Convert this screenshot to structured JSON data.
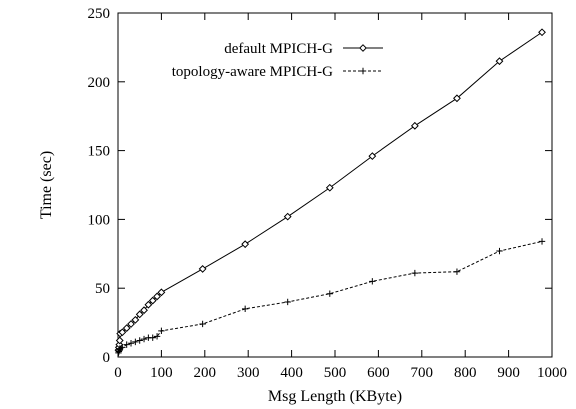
{
  "chart_data": {
    "type": "line",
    "title": "",
    "xlabel": "Msg Length (KByte)",
    "ylabel": "Time (sec)",
    "xlim": [
      0,
      1000
    ],
    "ylim": [
      0,
      250
    ],
    "x_ticks": [
      "0",
      "100",
      "200",
      "300",
      "400",
      "500",
      "600",
      "700",
      "800",
      "900",
      "1000"
    ],
    "y_ticks": [
      "0",
      "50",
      "100",
      "150",
      "200",
      "250"
    ],
    "grid": false,
    "legend_position": "top-right",
    "series": [
      {
        "name": "default MPICH-G",
        "line_style": "solid",
        "marker": "diamond",
        "color": "#000000",
        "points": [
          [
            1,
            5
          ],
          [
            2,
            7
          ],
          [
            3,
            9
          ],
          [
            4,
            12
          ],
          [
            5,
            17
          ],
          [
            10,
            18
          ],
          [
            20,
            21
          ],
          [
            30,
            24
          ],
          [
            40,
            27
          ],
          [
            50,
            31
          ],
          [
            60,
            34
          ],
          [
            70,
            38
          ],
          [
            80,
            41
          ],
          [
            90,
            44
          ],
          [
            100,
            47
          ],
          [
            195,
            64
          ],
          [
            293,
            82
          ],
          [
            391,
            102
          ],
          [
            488,
            123
          ],
          [
            586,
            146
          ],
          [
            684,
            168
          ],
          [
            781,
            188
          ],
          [
            879,
            215
          ],
          [
            977,
            236
          ]
        ]
      },
      {
        "name": "topology-aware MPICH-G",
        "line_style": "dashed",
        "marker": "plus",
        "color": "#000000",
        "points": [
          [
            1,
            3
          ],
          [
            2,
            4
          ],
          [
            3,
            5
          ],
          [
            4,
            6
          ],
          [
            5,
            6
          ],
          [
            10,
            7
          ],
          [
            20,
            9
          ],
          [
            30,
            10
          ],
          [
            40,
            11
          ],
          [
            50,
            12
          ],
          [
            60,
            13
          ],
          [
            70,
            14
          ],
          [
            80,
            14
          ],
          [
            90,
            15
          ],
          [
            100,
            19
          ],
          [
            195,
            24
          ],
          [
            293,
            35
          ],
          [
            391,
            40
          ],
          [
            488,
            46
          ],
          [
            586,
            55
          ],
          [
            684,
            61
          ],
          [
            781,
            62
          ],
          [
            879,
            77
          ],
          [
            977,
            84
          ]
        ]
      }
    ]
  }
}
